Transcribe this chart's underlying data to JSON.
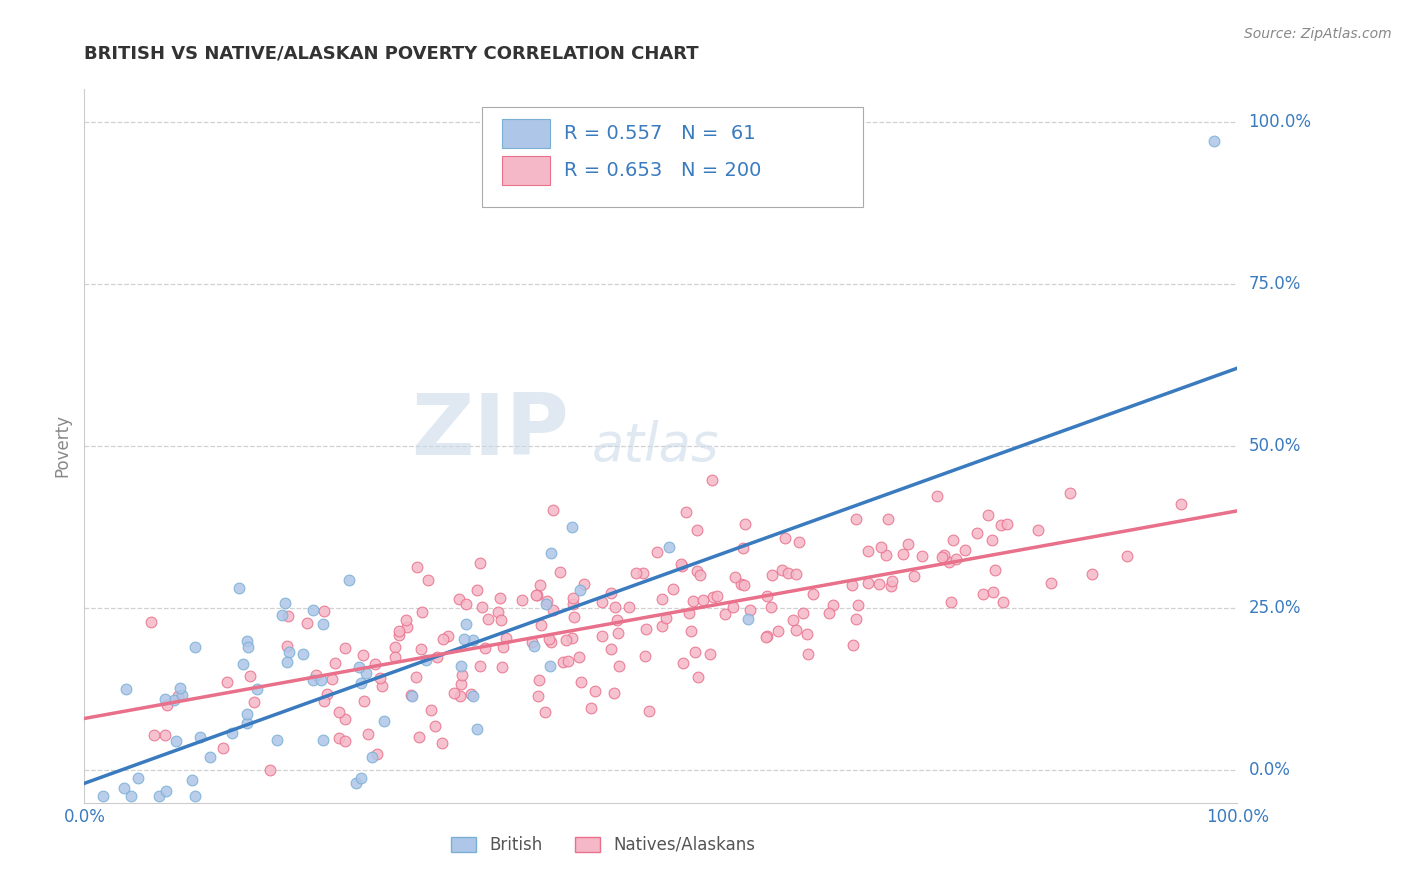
{
  "title": "BRITISH VS NATIVE/ALASKAN POVERTY CORRELATION CHART",
  "source_text": "Source: ZipAtlas.com",
  "ylabel": "Poverty",
  "xlabel": "",
  "xlim": [
    0,
    1
  ],
  "ylim": [
    -0.05,
    1.05
  ],
  "yticks": [
    0.0,
    0.25,
    0.5,
    0.75,
    1.0
  ],
  "ytick_labels": [
    "0.0%",
    "25.0%",
    "50.0%",
    "75.0%",
    "100.0%"
  ],
  "xticks": [
    0,
    1
  ],
  "xtick_labels": [
    "0.0%",
    "100.0%"
  ],
  "british_line_color": "#3a7bbf",
  "british_scatter_face": "#aec6e8",
  "british_scatter_edge": "#7aafd4",
  "native_line_color": "#e8708a",
  "native_scatter_face": "#f5b8c8",
  "native_scatter_edge": "#e8708a",
  "british_R": 0.557,
  "british_N": 61,
  "native_R": 0.653,
  "native_N": 200,
  "watermark_zip": "ZIP",
  "watermark_atlas": "atlas",
  "legend_labels": [
    "British",
    "Natives/Alaskans"
  ],
  "title_color": "#333333",
  "title_fontsize": 13,
  "axis_label_color": "#888888",
  "tick_label_color": "#3a7bbf",
  "grid_color": "#cccccc",
  "background_color": "#ffffff",
  "british_line_x0": 0.0,
  "british_line_y0": -0.02,
  "british_line_x1": 1.0,
  "british_line_y1": 0.62,
  "native_line_x0": 0.0,
  "native_line_y0": 0.08,
  "native_line_x1": 1.0,
  "native_line_y1": 0.4,
  "seed": 42
}
